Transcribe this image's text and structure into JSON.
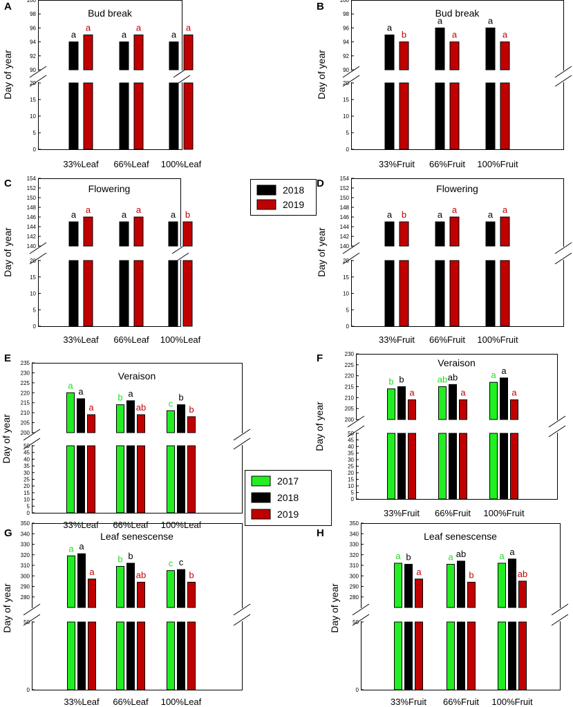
{
  "legend_top": {
    "entries": [
      {
        "label": "2018",
        "color": "#000000"
      },
      {
        "label": "2019",
        "color": "#c00000"
      }
    ]
  },
  "legend_mid": {
    "entries": [
      {
        "label": "2017",
        "color": "#22ee22"
      },
      {
        "label": "2018",
        "color": "#000000"
      },
      {
        "label": "2019",
        "color": "#c00000"
      }
    ]
  },
  "chart_data": [
    {
      "panel": "A",
      "type": "bar",
      "title": "Bud break",
      "ylabel": "Day of year",
      "categories": [
        "33%Leaf",
        "66%Leaf",
        "100%Leaf"
      ],
      "ylim_upper": [
        90,
        100
      ],
      "upper_ticks": [
        90,
        92,
        94,
        96,
        98,
        100
      ],
      "ylim_lower": [
        0,
        20
      ],
      "lower_ticks": [
        0,
        5,
        10,
        15,
        20
      ],
      "series": [
        {
          "name": "2018",
          "color": "#000000",
          "values": [
            94,
            94,
            94
          ],
          "letters": [
            "a",
            "a",
            "a"
          ]
        },
        {
          "name": "2019",
          "color": "#c00000",
          "values": [
            95,
            95,
            95
          ],
          "letters": [
            "a",
            "a",
            "a"
          ]
        }
      ]
    },
    {
      "panel": "B",
      "type": "bar",
      "title": "Bud break",
      "ylabel": "Day of year",
      "categories": [
        "33%Fruit",
        "66%Fruit",
        "100%Fruit"
      ],
      "ylim_upper": [
        90,
        100
      ],
      "upper_ticks": [
        90,
        92,
        94,
        96,
        98,
        100
      ],
      "ylim_lower": [
        0,
        20
      ],
      "lower_ticks": [
        0,
        5,
        10,
        15,
        20
      ],
      "series": [
        {
          "name": "2018",
          "color": "#000000",
          "values": [
            95,
            96,
            96
          ],
          "letters": [
            "a",
            "a",
            "a"
          ]
        },
        {
          "name": "2019",
          "color": "#c00000",
          "values": [
            94,
            94,
            94
          ],
          "letters": [
            "b",
            "a",
            "a"
          ]
        }
      ]
    },
    {
      "panel": "C",
      "type": "bar",
      "title": "Flowering",
      "ylabel": "Day of year",
      "categories": [
        "33%Leaf",
        "66%Leaf",
        "100%Leaf"
      ],
      "ylim_upper": [
        140,
        154
      ],
      "upper_ticks": [
        140,
        142,
        144,
        146,
        148,
        150,
        152,
        154
      ],
      "ylim_lower": [
        0,
        20
      ],
      "lower_ticks": [
        0,
        5,
        10,
        15,
        20
      ],
      "series": [
        {
          "name": "2018",
          "color": "#000000",
          "values": [
            145,
            145,
            145
          ],
          "letters": [
            "a",
            "a",
            "a"
          ]
        },
        {
          "name": "2019",
          "color": "#c00000",
          "values": [
            146,
            146,
            145
          ],
          "letters": [
            "a",
            "a",
            "b"
          ]
        }
      ]
    },
    {
      "panel": "D",
      "type": "bar",
      "title": "Flowering",
      "ylabel": "Day of year",
      "categories": [
        "33%Fruit",
        "66%Fruit",
        "100%Fruit"
      ],
      "ylim_upper": [
        140,
        154
      ],
      "upper_ticks": [
        140,
        142,
        144,
        146,
        148,
        150,
        152,
        154
      ],
      "ylim_lower": [
        0,
        20
      ],
      "lower_ticks": [
        0,
        5,
        10,
        15,
        20
      ],
      "series": [
        {
          "name": "2018",
          "color": "#000000",
          "values": [
            145,
            145,
            145
          ],
          "letters": [
            "a",
            "a",
            "a"
          ]
        },
        {
          "name": "2019",
          "color": "#c00000",
          "values": [
            145,
            146,
            146
          ],
          "letters": [
            "b",
            "a",
            "a"
          ]
        }
      ]
    },
    {
      "panel": "E",
      "type": "bar",
      "title": "Veraison",
      "ylabel": "Day of year",
      "categories": [
        "33%Leaf",
        "66%Leaf",
        "100%Leaf"
      ],
      "ylim_upper": [
        200,
        235
      ],
      "upper_ticks": [
        200,
        205,
        210,
        215,
        220,
        225,
        230,
        235
      ],
      "ylim_lower": [
        0,
        50
      ],
      "lower_ticks": [
        0,
        5,
        10,
        15,
        20,
        25,
        30,
        35,
        40,
        45,
        50
      ],
      "series": [
        {
          "name": "2017",
          "color": "#22ee22",
          "values": [
            220,
            214,
            211
          ],
          "letters": [
            "a",
            "b",
            "c"
          ]
        },
        {
          "name": "2018",
          "color": "#000000",
          "values": [
            217,
            216,
            214
          ],
          "letters": [
            "a",
            "a",
            "b"
          ]
        },
        {
          "name": "2019",
          "color": "#c00000",
          "values": [
            209,
            209,
            208
          ],
          "letters": [
            "a",
            "ab",
            "b"
          ]
        }
      ]
    },
    {
      "panel": "F",
      "type": "bar",
      "title": "Veraison",
      "ylabel": "Day of year",
      "categories": [
        "33%Fruit",
        "66%Fruit",
        "100%Fruit"
      ],
      "ylim_upper": [
        200,
        230
      ],
      "upper_ticks": [
        200,
        205,
        210,
        215,
        220,
        225,
        230
      ],
      "ylim_lower": [
        0,
        50
      ],
      "lower_ticks": [
        0,
        5,
        10,
        15,
        20,
        25,
        30,
        35,
        40,
        45,
        50
      ],
      "series": [
        {
          "name": "2017",
          "color": "#22ee22",
          "values": [
            214,
            215,
            217
          ],
          "letters": [
            "b",
            "ab",
            "a"
          ]
        },
        {
          "name": "2018",
          "color": "#000000",
          "values": [
            215,
            216,
            219
          ],
          "letters": [
            "b",
            "ab",
            "a"
          ]
        },
        {
          "name": "2019",
          "color": "#c00000",
          "values": [
            209,
            209,
            209
          ],
          "letters": [
            "a",
            "a",
            "a"
          ]
        }
      ]
    },
    {
      "panel": "G",
      "type": "bar",
      "title": "Leaf senescense",
      "ylabel": "Day of year",
      "categories": [
        "33%Leaf",
        "66%Leaf",
        "100%Leaf"
      ],
      "ylim_upper": [
        270,
        350
      ],
      "upper_ticks": [
        280,
        290,
        300,
        310,
        320,
        330,
        340,
        350
      ],
      "ylim_lower": [
        0,
        50
      ],
      "lower_ticks": [
        0,
        50
      ],
      "series": [
        {
          "name": "2017",
          "color": "#22ee22",
          "values": [
            319,
            309,
            305
          ],
          "letters": [
            "a",
            "b",
            "c"
          ]
        },
        {
          "name": "2018",
          "color": "#000000",
          "values": [
            321,
            312,
            306
          ],
          "letters": [
            "a",
            "b",
            "c"
          ]
        },
        {
          "name": "2019",
          "color": "#c00000",
          "values": [
            297,
            294,
            294
          ],
          "letters": [
            "a",
            "ab",
            "b"
          ]
        }
      ]
    },
    {
      "panel": "H",
      "type": "bar",
      "title": "Leaf senescense",
      "ylabel": "Day of year",
      "categories": [
        "33%Fruit",
        "66%Fruit",
        "100%Fruit"
      ],
      "ylim_upper": [
        270,
        350
      ],
      "upper_ticks": [
        280,
        290,
        300,
        310,
        320,
        330,
        340,
        350
      ],
      "ylim_lower": [
        0,
        50
      ],
      "lower_ticks": [
        0,
        50
      ],
      "series": [
        {
          "name": "2017",
          "color": "#22ee22",
          "values": [
            312,
            311,
            312
          ],
          "letters": [
            "a",
            "a",
            "a"
          ]
        },
        {
          "name": "2018",
          "color": "#000000",
          "values": [
            311,
            314,
            316
          ],
          "letters": [
            "b",
            "ab",
            "a"
          ]
        },
        {
          "name": "2019",
          "color": "#c00000",
          "values": [
            297,
            294,
            295
          ],
          "letters": [
            "a",
            "b",
            "ab"
          ]
        }
      ]
    }
  ]
}
